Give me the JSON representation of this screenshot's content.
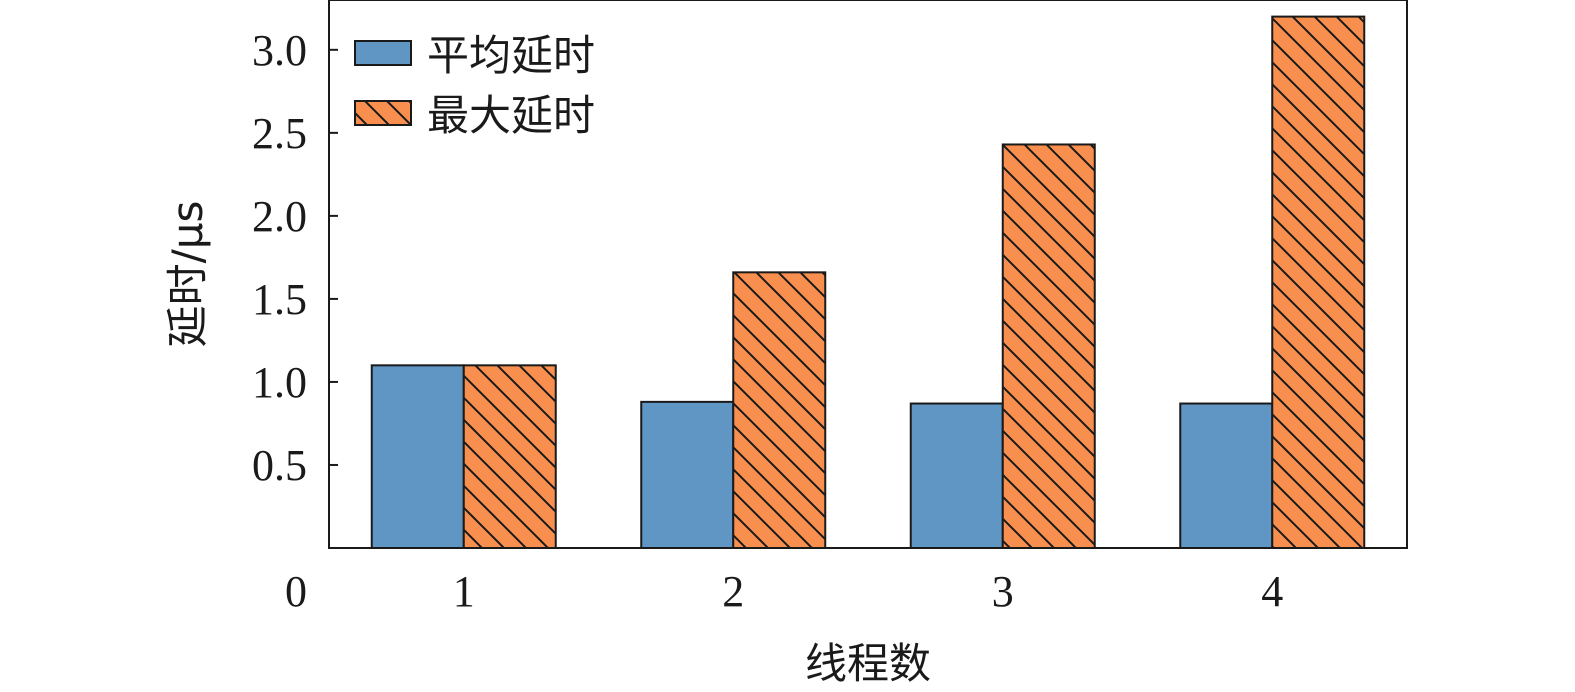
{
  "chart_data": {
    "type": "bar",
    "xlabel": "线程数",
    "ylabel": "延时/μs",
    "categories": [
      "1",
      "2",
      "3",
      "4"
    ],
    "series": [
      {
        "name": "平均延时",
        "values": [
          1.1,
          0.88,
          0.87,
          0.87
        ],
        "color": "#6096c4",
        "pattern": "solid"
      },
      {
        "name": "最大延时",
        "values": [
          1.1,
          1.66,
          2.43,
          3.2
        ],
        "color": "#f98f4f",
        "pattern": "diagonal-hatch"
      }
    ],
    "ylim": [
      0,
      3.3
    ],
    "yticks": [
      0.5,
      1.0,
      1.5,
      2.0,
      2.5,
      3.0
    ],
    "ytick_labels": [
      "0.5",
      "1.0",
      "1.5",
      "2.0",
      "2.5",
      "3.0"
    ],
    "origin_label": "0",
    "legend_position": "top-left",
    "grid": false
  }
}
